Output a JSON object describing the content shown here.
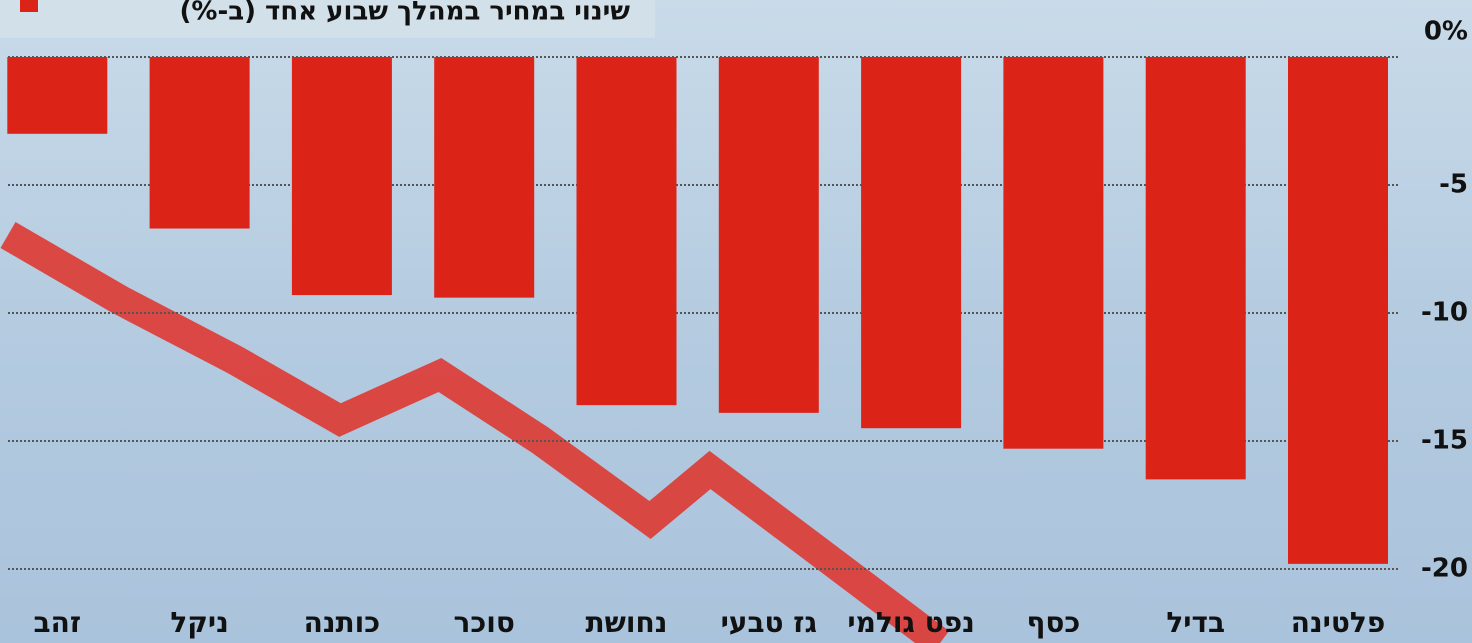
{
  "chart_data": {
    "type": "bar",
    "categories": [
      "פלטינה",
      "בדיל",
      "כסף",
      "נפט גולמי",
      "גז טבעי",
      "נחושת",
      "סוכר",
      "כותנה",
      "ניקל",
      "זהב"
    ],
    "series": [
      {
        "name": "שינוי במחיר במהלך שבוע אחד (ב-%)",
        "color": "#dc2318",
        "values": [
          -19.8,
          -16.5,
          -15.3,
          -14.5,
          -13.9,
          -13.6,
          -9.4,
          -9.3,
          -6.7,
          -3.0
        ]
      }
    ],
    "ylim": [
      -20,
      0
    ],
    "yticks": [
      {
        "value": 0,
        "label": "0%"
      },
      -5,
      -10,
      -15,
      -20
    ],
    "grid": true,
    "legend": "top-left"
  }
}
